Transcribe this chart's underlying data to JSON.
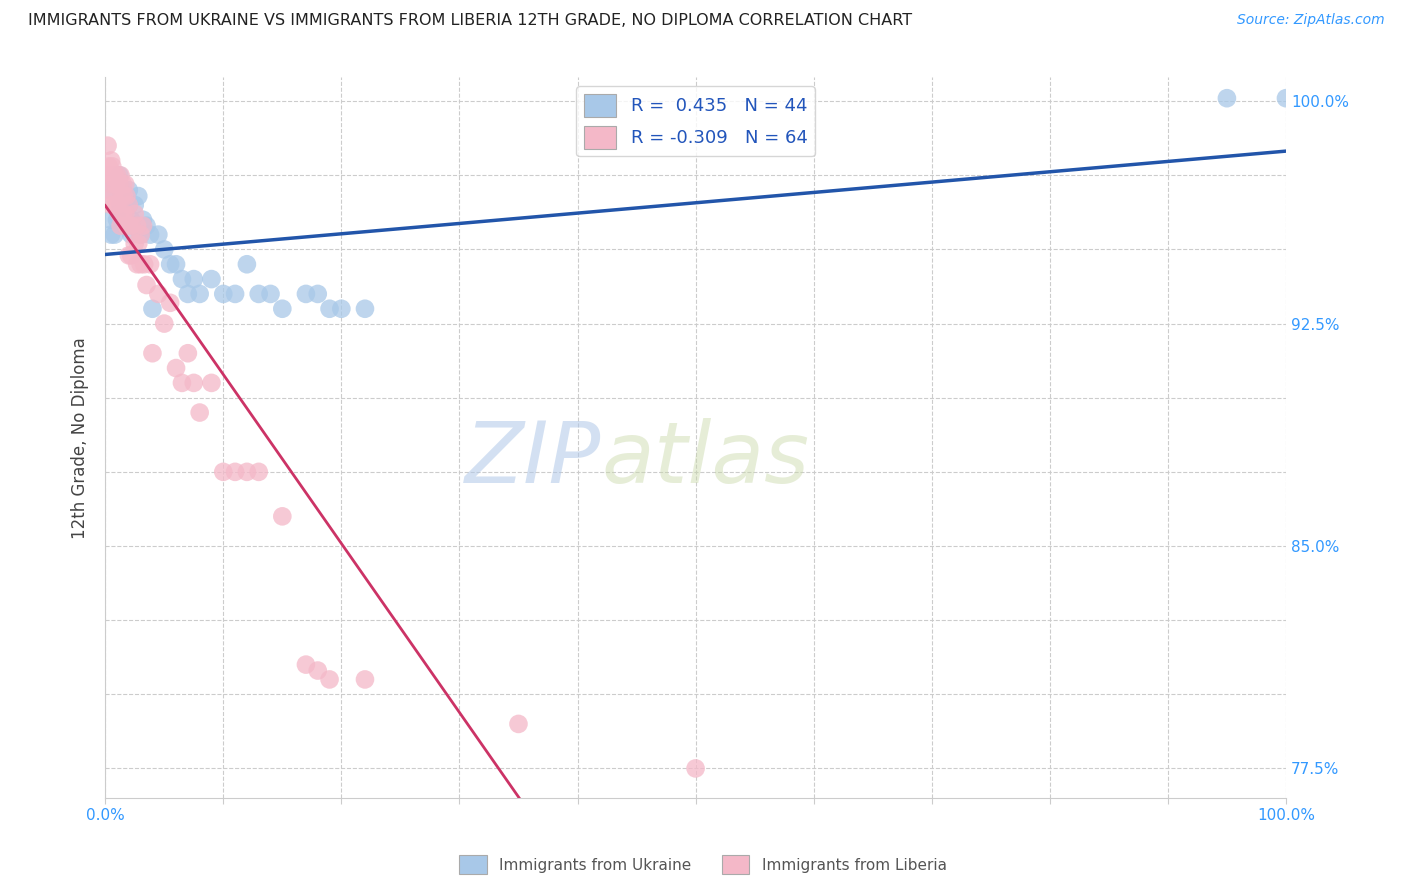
{
  "title": "IMMIGRANTS FROM UKRAINE VS IMMIGRANTS FROM LIBERIA 12TH GRADE, NO DIPLOMA CORRELATION CHART",
  "source": "Source: ZipAtlas.com",
  "ylabel": "12th Grade, No Diploma",
  "xlim": [
    0.0,
    1.0
  ],
  "ylim": [
    0.765,
    1.008
  ],
  "y_ticks": [
    0.775,
    0.8,
    0.825,
    0.85,
    0.875,
    0.9,
    0.925,
    0.95,
    0.975,
    1.0
  ],
  "y_tick_labels_right": [
    "77.5%",
    "",
    "",
    "85.0%",
    "",
    "",
    "92.5%",
    "",
    "",
    "100.0%"
  ],
  "ukraine_R": 0.435,
  "ukraine_N": 44,
  "liberia_R": -0.309,
  "liberia_N": 64,
  "ukraine_color": "#a8c8e8",
  "liberia_color": "#f4b8c8",
  "ukraine_line_color": "#2255aa",
  "liberia_line_color": "#cc3366",
  "watermark_zip": "ZIP",
  "watermark_atlas": "atlas",
  "ukraine_points_x": [
    0.005,
    0.005,
    0.005,
    0.008,
    0.01,
    0.012,
    0.013,
    0.015,
    0.015,
    0.018,
    0.02,
    0.02,
    0.022,
    0.022,
    0.025,
    0.025,
    0.028,
    0.03,
    0.032,
    0.035,
    0.038,
    0.04,
    0.045,
    0.05,
    0.055,
    0.06,
    0.065,
    0.07,
    0.075,
    0.08,
    0.09,
    0.1,
    0.11,
    0.12,
    0.13,
    0.14,
    0.15,
    0.17,
    0.18,
    0.19,
    0.2,
    0.22,
    0.95,
    1.0
  ],
  "ukraine_points_y": [
    0.96,
    0.955,
    0.97,
    0.955,
    0.96,
    0.975,
    0.965,
    0.97,
    0.958,
    0.96,
    0.97,
    0.965,
    0.96,
    0.955,
    0.965,
    0.958,
    0.968,
    0.955,
    0.96,
    0.958,
    0.955,
    0.93,
    0.955,
    0.95,
    0.945,
    0.945,
    0.94,
    0.935,
    0.94,
    0.935,
    0.94,
    0.935,
    0.935,
    0.945,
    0.935,
    0.935,
    0.93,
    0.935,
    0.935,
    0.93,
    0.93,
    0.93,
    1.001,
    1.001
  ],
  "liberia_points_x": [
    0.002,
    0.003,
    0.003,
    0.004,
    0.005,
    0.005,
    0.005,
    0.006,
    0.007,
    0.007,
    0.008,
    0.008,
    0.009,
    0.01,
    0.01,
    0.012,
    0.012,
    0.013,
    0.013,
    0.014,
    0.015,
    0.015,
    0.016,
    0.017,
    0.017,
    0.018,
    0.018,
    0.02,
    0.02,
    0.02,
    0.022,
    0.022,
    0.025,
    0.025,
    0.027,
    0.027,
    0.028,
    0.03,
    0.03,
    0.032,
    0.033,
    0.035,
    0.038,
    0.04,
    0.045,
    0.05,
    0.055,
    0.06,
    0.065,
    0.07,
    0.075,
    0.08,
    0.09,
    0.1,
    0.11,
    0.12,
    0.13,
    0.15,
    0.17,
    0.18,
    0.19,
    0.22,
    0.35,
    0.5
  ],
  "liberia_points_y": [
    0.985,
    0.978,
    0.97,
    0.975,
    0.98,
    0.972,
    0.965,
    0.978,
    0.975,
    0.968,
    0.975,
    0.965,
    0.972,
    0.975,
    0.965,
    0.972,
    0.962,
    0.975,
    0.958,
    0.968,
    0.972,
    0.962,
    0.968,
    0.972,
    0.962,
    0.968,
    0.958,
    0.965,
    0.958,
    0.948,
    0.958,
    0.948,
    0.962,
    0.952,
    0.958,
    0.945,
    0.952,
    0.955,
    0.945,
    0.958,
    0.945,
    0.938,
    0.945,
    0.915,
    0.935,
    0.925,
    0.932,
    0.91,
    0.905,
    0.915,
    0.905,
    0.895,
    0.905,
    0.875,
    0.875,
    0.875,
    0.875,
    0.86,
    0.81,
    0.808,
    0.805,
    0.805,
    0.79,
    0.775
  ],
  "grid_color": "#cccccc",
  "background_color": "#ffffff"
}
